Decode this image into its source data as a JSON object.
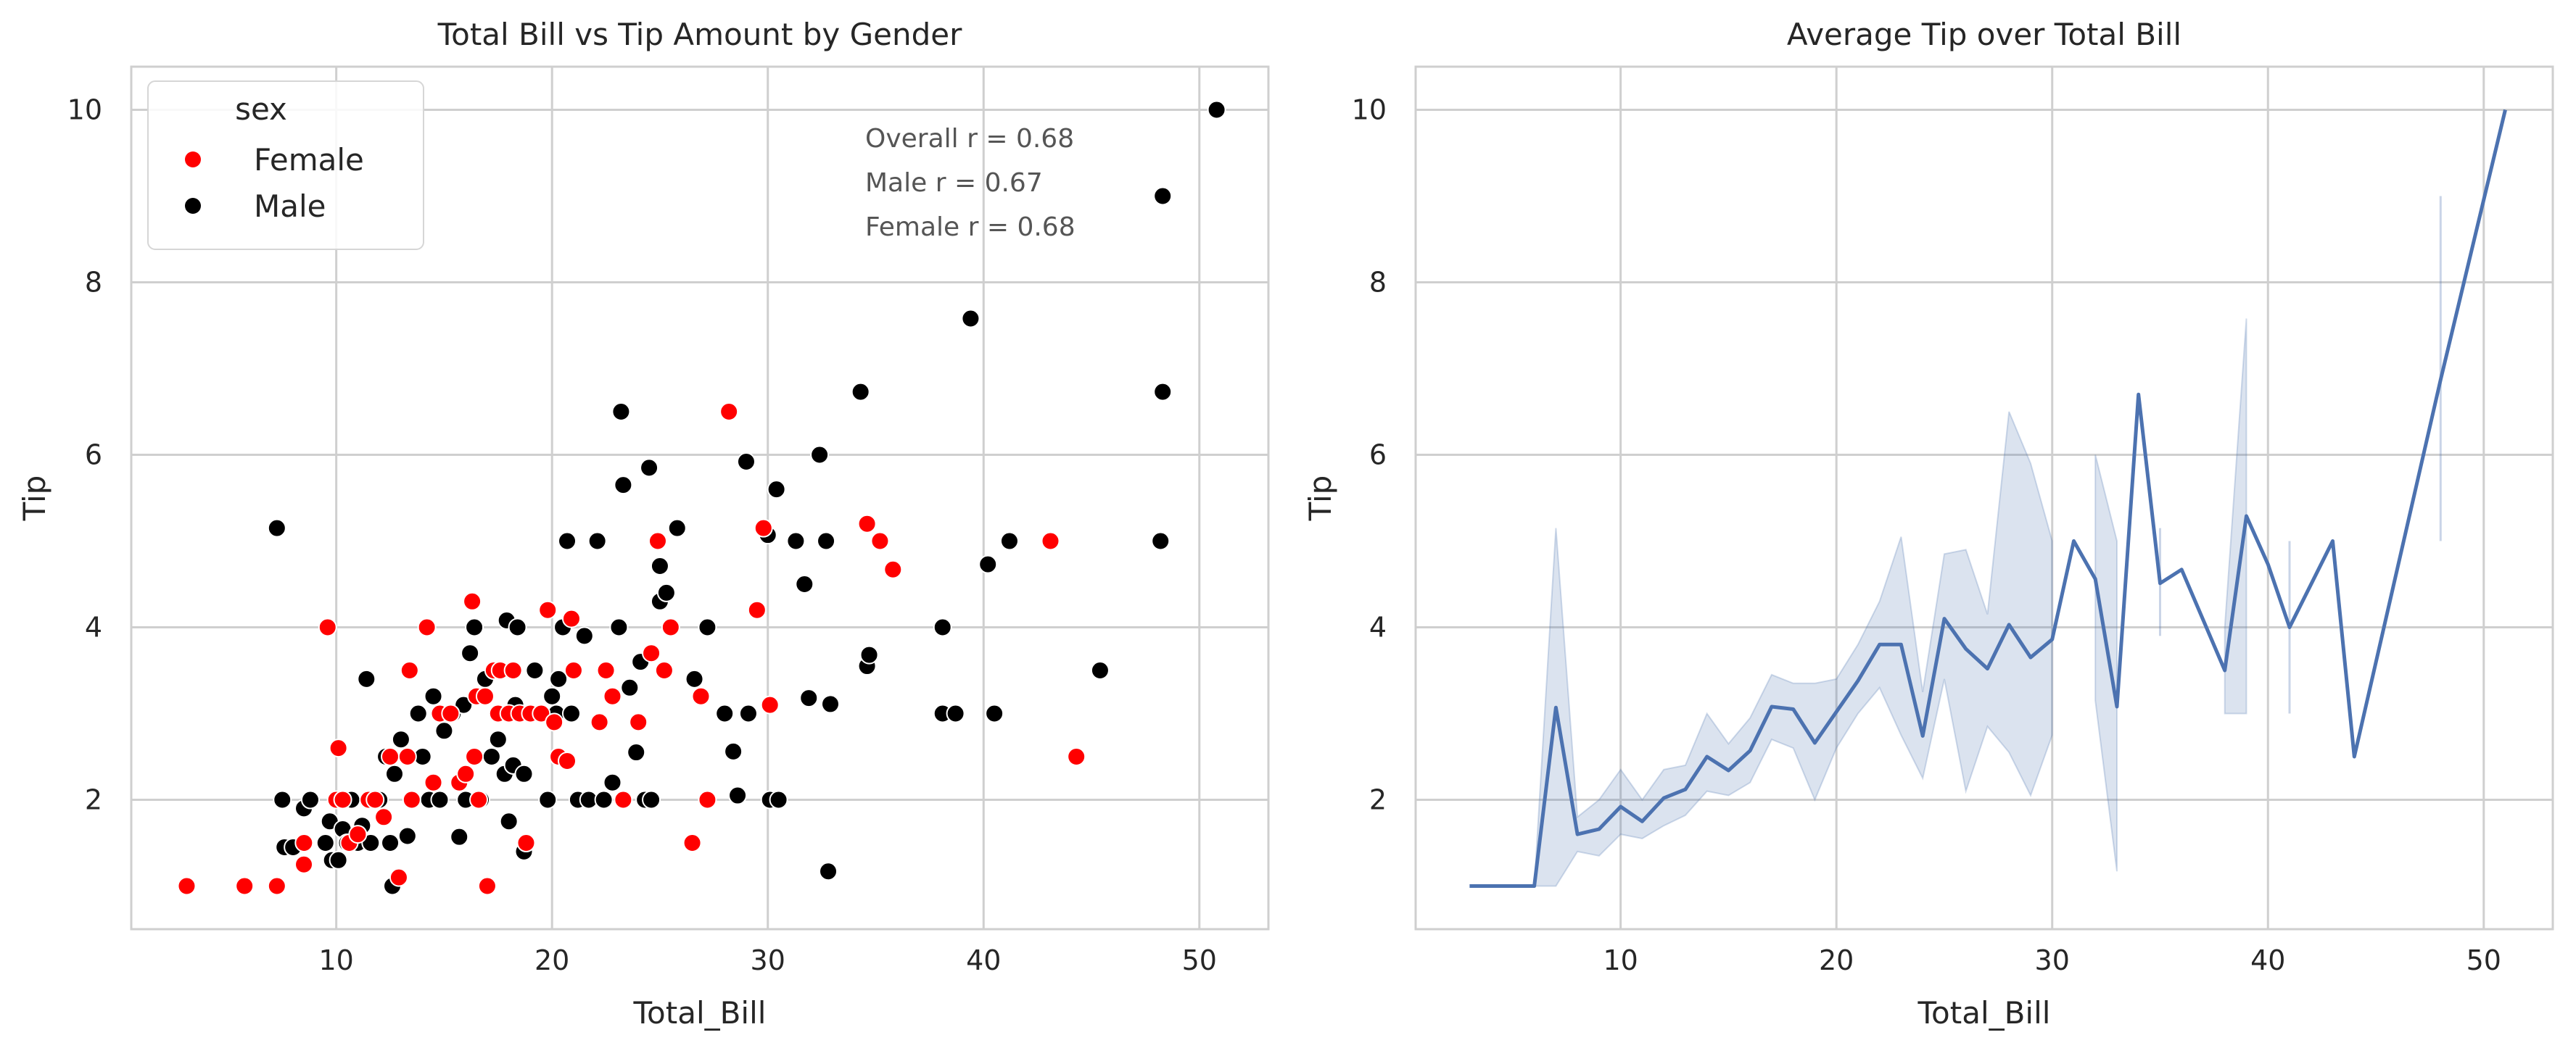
{
  "colors": {
    "female": "#ff0000",
    "male": "#000000",
    "line": "#4c72b0",
    "band": "#4c72b0",
    "grid": "#cfcfcf",
    "spine": "#cfcfcf",
    "marker_edge": "#ffffff"
  },
  "chart_data": [
    {
      "type": "scatter",
      "title": "Total Bill vs Tip Amount by Gender",
      "xlabel": "Total_Bill",
      "ylabel": "Tip",
      "xlim": [
        0.5,
        53.2
      ],
      "ylim": [
        0.5,
        10.5
      ],
      "xticks": [
        10,
        20,
        30,
        40,
        50
      ],
      "yticks": [
        2,
        4,
        6,
        8,
        10
      ],
      "grid": true,
      "legend": {
        "title": "sex",
        "placement": "upper-left",
        "entries": [
          {
            "label": "Female",
            "series": "Female"
          },
          {
            "label": "Male",
            "series": "Male"
          }
        ]
      },
      "annotations": [
        "Overall r = 0.68",
        "Male r = 0.67",
        "Female r = 0.68"
      ],
      "series": [
        {
          "name": "Female",
          "points": [
            [
              3.07,
              1.0
            ],
            [
              5.75,
              1.0
            ],
            [
              7.25,
              1.0
            ],
            [
              8.5,
              1.25
            ],
            [
              8.51,
              1.5
            ],
            [
              9.6,
              4.0
            ],
            [
              10.0,
              2.0
            ],
            [
              10.1,
              2.6
            ],
            [
              10.3,
              2.0
            ],
            [
              10.6,
              1.5
            ],
            [
              11.0,
              1.6
            ],
            [
              11.5,
              2.0
            ],
            [
              11.8,
              2.0
            ],
            [
              12.2,
              1.8
            ],
            [
              12.5,
              2.5
            ],
            [
              12.9,
              1.1
            ],
            [
              13.3,
              2.5
            ],
            [
              13.4,
              3.5
            ],
            [
              13.5,
              2.0
            ],
            [
              14.2,
              4.0
            ],
            [
              14.5,
              2.2
            ],
            [
              14.8,
              3.0
            ],
            [
              15.3,
              3.0
            ],
            [
              15.7,
              2.2
            ],
            [
              16.0,
              2.3
            ],
            [
              16.3,
              4.3
            ],
            [
              16.4,
              2.5
            ],
            [
              16.5,
              3.2
            ],
            [
              16.6,
              2.0
            ],
            [
              16.9,
              3.2
            ],
            [
              17.0,
              1.0
            ],
            [
              17.3,
              3.5
            ],
            [
              17.5,
              3.0
            ],
            [
              17.6,
              3.5
            ],
            [
              18.0,
              3.0
            ],
            [
              18.2,
              3.5
            ],
            [
              18.5,
              3.0
            ],
            [
              18.8,
              1.5
            ],
            [
              19.0,
              3.0
            ],
            [
              19.5,
              3.0
            ],
            [
              19.8,
              4.2
            ],
            [
              20.1,
              2.9
            ],
            [
              20.3,
              2.5
            ],
            [
              20.7,
              2.45
            ],
            [
              20.9,
              4.1
            ],
            [
              21.0,
              3.5
            ],
            [
              22.2,
              2.9
            ],
            [
              22.5,
              3.5
            ],
            [
              22.8,
              3.2
            ],
            [
              23.3,
              2.0
            ],
            [
              24.0,
              2.9
            ],
            [
              24.6,
              3.7
            ],
            [
              24.9,
              5.0
            ],
            [
              25.2,
              3.5
            ],
            [
              25.5,
              4.0
            ],
            [
              26.5,
              1.5
            ],
            [
              26.9,
              3.2
            ],
            [
              27.2,
              2.0
            ],
            [
              28.2,
              6.5
            ],
            [
              29.5,
              4.2
            ],
            [
              29.8,
              5.15
            ],
            [
              30.1,
              3.1
            ],
            [
              34.6,
              5.2
            ],
            [
              35.2,
              5.0
            ],
            [
              35.8,
              4.67
            ],
            [
              43.1,
              5.0
            ],
            [
              44.3,
              2.5
            ]
          ]
        },
        {
          "name": "Male",
          "points": [
            [
              7.25,
              5.15
            ],
            [
              7.5,
              2.0
            ],
            [
              7.6,
              1.45
            ],
            [
              8.0,
              1.45
            ],
            [
              8.5,
              1.9
            ],
            [
              8.8,
              2.0
            ],
            [
              9.5,
              1.5
            ],
            [
              9.7,
              1.75
            ],
            [
              9.8,
              1.3
            ],
            [
              10.1,
              1.3
            ],
            [
              10.3,
              1.66
            ],
            [
              10.5,
              1.5
            ],
            [
              10.7,
              2.0
            ],
            [
              11.0,
              1.5
            ],
            [
              11.2,
              1.7
            ],
            [
              11.4,
              3.4
            ],
            [
              11.6,
              1.5
            ],
            [
              12.0,
              2.0
            ],
            [
              12.3,
              2.5
            ],
            [
              12.5,
              1.5
            ],
            [
              12.6,
              1.0
            ],
            [
              12.7,
              2.3
            ],
            [
              13.0,
              2.7
            ],
            [
              13.3,
              1.58
            ],
            [
              13.5,
              2.0
            ],
            [
              13.8,
              3.0
            ],
            [
              14.0,
              2.5
            ],
            [
              14.3,
              2.0
            ],
            [
              14.5,
              3.2
            ],
            [
              14.8,
              2.0
            ],
            [
              15.0,
              2.8
            ],
            [
              15.4,
              3.0
            ],
            [
              15.7,
              1.57
            ],
            [
              15.9,
              3.1
            ],
            [
              16.0,
              2.0
            ],
            [
              16.2,
              3.7
            ],
            [
              16.4,
              4.0
            ],
            [
              16.7,
              2.0
            ],
            [
              16.9,
              3.4
            ],
            [
              17.2,
              2.5
            ],
            [
              17.5,
              2.7
            ],
            [
              17.8,
              2.3
            ],
            [
              17.9,
              4.08
            ],
            [
              18.0,
              1.75
            ],
            [
              18.2,
              2.4
            ],
            [
              18.3,
              3.1
            ],
            [
              18.4,
              4.0
            ],
            [
              18.7,
              2.3
            ],
            [
              18.7,
              1.4
            ],
            [
              19.2,
              3.5
            ],
            [
              19.4,
              3.0
            ],
            [
              19.8,
              2.0
            ],
            [
              20.0,
              3.2
            ],
            [
              20.2,
              3.0
            ],
            [
              20.3,
              3.4
            ],
            [
              20.5,
              4.0
            ],
            [
              20.7,
              5.0
            ],
            [
              20.9,
              3.0
            ],
            [
              21.2,
              2.0
            ],
            [
              21.5,
              3.9
            ],
            [
              21.7,
              2.0
            ],
            [
              22.1,
              5.0
            ],
            [
              22.4,
              2.0
            ],
            [
              22.8,
              2.2
            ],
            [
              23.1,
              4.0
            ],
            [
              23.2,
              6.5
            ],
            [
              23.3,
              5.65
            ],
            [
              23.6,
              3.3
            ],
            [
              23.9,
              2.55
            ],
            [
              24.1,
              3.6
            ],
            [
              24.3,
              2.0
            ],
            [
              24.5,
              5.85
            ],
            [
              24.6,
              2.0
            ],
            [
              25.0,
              4.3
            ],
            [
              25.0,
              4.71
            ],
            [
              25.3,
              4.4
            ],
            [
              25.8,
              5.15
            ],
            [
              26.6,
              3.4
            ],
            [
              27.2,
              4.0
            ],
            [
              28.0,
              3.0
            ],
            [
              28.4,
              2.56
            ],
            [
              28.6,
              2.05
            ],
            [
              29.0,
              5.92
            ],
            [
              29.1,
              3.0
            ],
            [
              30.0,
              5.07
            ],
            [
              30.1,
              2.0
            ],
            [
              30.4,
              5.6
            ],
            [
              30.5,
              2.0
            ],
            [
              31.3,
              5.0
            ],
            [
              31.7,
              4.5
            ],
            [
              31.9,
              3.18
            ],
            [
              32.4,
              6.0
            ],
            [
              32.7,
              5.0
            ],
            [
              32.8,
              1.17
            ],
            [
              32.9,
              3.11
            ],
            [
              34.3,
              6.73
            ],
            [
              34.6,
              3.55
            ],
            [
              34.7,
              3.68
            ],
            [
              38.1,
              4.0
            ],
            [
              38.1,
              3.0
            ],
            [
              38.7,
              3.0
            ],
            [
              39.4,
              7.58
            ],
            [
              40.2,
              4.73
            ],
            [
              40.5,
              3.0
            ],
            [
              41.2,
              5.0
            ],
            [
              45.4,
              3.5
            ],
            [
              48.2,
              5.0
            ],
            [
              48.3,
              6.73
            ],
            [
              48.3,
              9.0
            ],
            [
              50.8,
              10.0
            ]
          ]
        }
      ]
    },
    {
      "type": "line",
      "title": "Average Tip over Total Bill",
      "xlabel": "Total_Bill",
      "ylabel": "Tip",
      "xlim": [
        0.5,
        53.2
      ],
      "ylim": [
        0.5,
        10.5
      ],
      "xticks": [
        10,
        20,
        30,
        40,
        50
      ],
      "yticks": [
        2,
        4,
        6,
        8,
        10
      ],
      "grid": true,
      "series": [
        {
          "name": "",
          "points": [
            [
              3,
              1.0
            ],
            [
              4,
              1.0
            ],
            [
              5,
              1.0
            ],
            [
              6,
              1.0
            ],
            [
              7,
              3.07
            ],
            [
              8,
              1.6
            ],
            [
              9,
              1.66
            ],
            [
              10,
              1.92
            ],
            [
              11,
              1.75
            ],
            [
              12,
              2.02
            ],
            [
              13,
              2.12
            ],
            [
              14,
              2.5
            ],
            [
              15,
              2.34
            ],
            [
              16,
              2.57
            ],
            [
              17,
              3.08
            ],
            [
              18,
              3.05
            ],
            [
              19,
              2.66
            ],
            [
              20,
              3.02
            ],
            [
              21,
              3.38
            ],
            [
              22,
              3.8
            ],
            [
              23,
              3.8
            ],
            [
              24,
              2.74
            ],
            [
              25,
              4.1
            ],
            [
              26,
              3.75
            ],
            [
              27,
              3.52
            ],
            [
              28,
              4.03
            ],
            [
              29,
              3.65
            ],
            [
              30,
              3.86
            ],
            [
              31,
              5.0
            ],
            [
              32,
              4.56
            ],
            [
              33,
              3.08
            ],
            [
              34,
              6.7
            ],
            [
              35,
              4.51
            ],
            [
              36,
              4.67
            ],
            [
              38,
              3.5
            ],
            [
              39,
              5.29
            ],
            [
              40,
              4.73
            ],
            [
              41,
              4.0
            ],
            [
              43,
              5.0
            ],
            [
              44,
              2.5
            ],
            [
              48,
              6.87
            ],
            [
              51,
              10.0
            ]
          ]
        }
      ],
      "confidence_band": [
        {
          "x": [
            6,
            7,
            8,
            9,
            10,
            11,
            12,
            13,
            14,
            15,
            16,
            17,
            18,
            19,
            20,
            21,
            22,
            23,
            24,
            25,
            26,
            27,
            28,
            29,
            30
          ],
          "lower": [
            1.0,
            1.0,
            1.4,
            1.35,
            1.6,
            1.55,
            1.7,
            1.82,
            2.1,
            2.05,
            2.2,
            2.7,
            2.6,
            2.0,
            2.6,
            3.0,
            3.3,
            2.75,
            2.25,
            3.4,
            2.1,
            2.85,
            2.55,
            2.05,
            2.75
          ],
          "upper": [
            1.0,
            5.15,
            1.8,
            2.0,
            2.35,
            2.0,
            2.35,
            2.4,
            3.0,
            2.65,
            2.95,
            3.45,
            3.35,
            3.35,
            3.4,
            3.8,
            4.3,
            5.05,
            3.25,
            4.85,
            4.9,
            4.15,
            6.5,
            5.9,
            5.0
          ]
        },
        {
          "x": [
            32,
            33
          ],
          "lower": [
            3.15,
            1.17
          ],
          "upper": [
            6.0,
            5.0
          ]
        },
        {
          "x": [
            38,
            39
          ],
          "lower": [
            3.0,
            3.0
          ],
          "upper": [
            4.0,
            7.58
          ]
        }
      ],
      "error_bars": [
        {
          "x": 35,
          "lower": 3.9,
          "upper": 5.15
        },
        {
          "x": 41,
          "lower": 3.0,
          "upper": 5.0
        },
        {
          "x": 48,
          "lower": 5.0,
          "upper": 9.0
        }
      ]
    }
  ]
}
